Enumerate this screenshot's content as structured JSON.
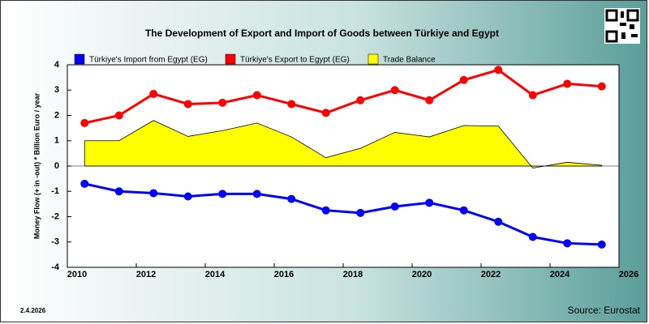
{
  "chart_data": {
    "type": "line",
    "title": "The Development of Export and Import of Goods between Türkiye and Egypt",
    "y_label": "Money Flow (+ in -out) * Billion Euro / year",
    "date": "2.4.2026",
    "source": "Source: Eurostat",
    "x": [
      2010,
      2011,
      2012,
      2013,
      2014,
      2015,
      2016,
      2017,
      2018,
      2019,
      2020,
      2021,
      2022,
      2023,
      2024,
      2025
    ],
    "series": [
      {
        "name": "Türkiye's Import from Egypt (EG)",
        "color": "#0000ff",
        "style": "line",
        "values": [
          -0.7,
          -1.0,
          -1.07,
          -1.2,
          -1.1,
          -1.1,
          -1.3,
          -1.75,
          -1.85,
          -1.6,
          -1.45,
          -1.75,
          -2.2,
          -2.8,
          -3.05,
          -3.1
        ]
      },
      {
        "name": "Türkiye's Export to Egypt (EG)",
        "color": "#ff0000",
        "style": "line",
        "values": [
          1.7,
          2.0,
          2.85,
          2.45,
          2.5,
          2.8,
          2.45,
          2.1,
          2.6,
          3.0,
          2.6,
          3.4,
          3.8,
          2.8,
          3.25,
          3.15
        ]
      },
      {
        "name": "Trade Balance",
        "color": "#ffff00",
        "style": "area",
        "values": [
          1.0,
          1.0,
          1.8,
          1.17,
          1.4,
          1.7,
          1.15,
          0.33,
          0.7,
          1.33,
          1.15,
          1.6,
          1.58,
          -0.08,
          0.15,
          0.03
        ]
      }
    ],
    "xlim": [
      2010,
      2026
    ],
    "xticks": [
      2010,
      2012,
      2014,
      2016,
      2018,
      2020,
      2022,
      2024,
      2026
    ],
    "ylim": [
      -4,
      4
    ],
    "yticks": [
      -4,
      -3,
      -2,
      -1,
      0,
      1,
      2,
      3,
      4
    ]
  }
}
